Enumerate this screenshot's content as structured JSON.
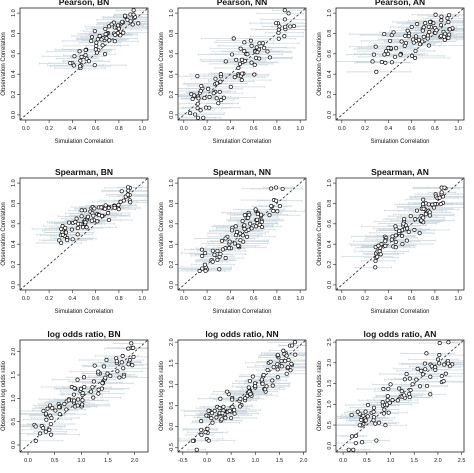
{
  "figure": {
    "panel_count": 9,
    "colors": {
      "points": "#111111",
      "errorbars": "#c9d6dd",
      "frame": "#222222",
      "identity_line": "#222222"
    }
  },
  "chart_data": [
    {
      "type": "scatter",
      "title": "Pearson, BN",
      "xlabel": "Simulation Correlation",
      "ylabel": "Observation Correlation",
      "xlim": [
        -0.05,
        1.05
      ],
      "ylim": [
        -0.05,
        1.05
      ],
      "xticks": [
        "0.0",
        "0.2",
        "0.4",
        "0.6",
        "0.8",
        "1.0"
      ],
      "yticks": [
        "0.0",
        "0.2",
        "0.4",
        "0.6",
        "0.8",
        "1.0"
      ],
      "identity_line": true,
      "error_bars": "horizontal",
      "gen": {
        "seed": 11,
        "n": 70,
        "xmin": 0.38,
        "xmax": 0.97,
        "slope": 0.85,
        "intercept": 0.17,
        "noise": 0.06,
        "ebar": 0.22
      }
    },
    {
      "type": "scatter",
      "title": "Pearson, NN",
      "xlabel": "Simulation Correlation",
      "ylabel": "Observation Correlation",
      "xlim": [
        -0.05,
        1.05
      ],
      "ylim": [
        -0.05,
        1.05
      ],
      "xticks": [
        "0.0",
        "0.2",
        "0.4",
        "0.6",
        "0.8",
        "1.0"
      ],
      "yticks": [
        "0.0",
        "0.2",
        "0.4",
        "0.6",
        "0.8",
        "1.0"
      ],
      "identity_line": true,
      "error_bars": "horizontal",
      "gen": {
        "seed": 23,
        "n": 90,
        "xmin": 0.05,
        "xmax": 0.95,
        "slope": 1.0,
        "intercept": 0.0,
        "noise": 0.11,
        "ebar": 0.24
      }
    },
    {
      "type": "scatter",
      "title": "Pearson, AN",
      "xlabel": "Simulation Correlation",
      "ylabel": "Observation Correlation",
      "xlim": [
        -0.05,
        1.05
      ],
      "ylim": [
        -0.05,
        1.05
      ],
      "xticks": [
        "0.0",
        "0.2",
        "0.4",
        "0.6",
        "0.8",
        "1.0"
      ],
      "yticks": [
        "0.0",
        "0.2",
        "0.4",
        "0.6",
        "0.8",
        "1.0"
      ],
      "identity_line": true,
      "error_bars": "horizontal",
      "gen": {
        "seed": 37,
        "n": 80,
        "xmin": 0.25,
        "xmax": 0.97,
        "slope": 0.45,
        "intercept": 0.48,
        "noise": 0.08,
        "ebar": 0.25
      }
    },
    {
      "type": "scatter",
      "title": "Spearman, BN",
      "xlabel": "Simulation Correlation",
      "ylabel": "Observation Correlation",
      "xlim": [
        -0.05,
        1.05
      ],
      "ylim": [
        -0.05,
        1.05
      ],
      "xticks": [
        "0.0",
        "0.2",
        "0.4",
        "0.6",
        "0.8",
        "1.0"
      ],
      "yticks": [
        "0.0",
        "0.2",
        "0.4",
        "0.6",
        "0.8",
        "1.0"
      ],
      "identity_line": true,
      "error_bars": "horizontal",
      "gen": {
        "seed": 41,
        "n": 85,
        "xmin": 0.28,
        "xmax": 0.9,
        "slope": 0.65,
        "intercept": 0.3,
        "noise": 0.05,
        "ebar": 0.2
      }
    },
    {
      "type": "scatter",
      "title": "Spearman, NN",
      "xlabel": "Simulation Correlation",
      "ylabel": "Observation Correlation",
      "xlim": [
        -0.05,
        1.05
      ],
      "ylim": [
        -0.05,
        1.05
      ],
      "xticks": [
        "0.0",
        "0.2",
        "0.4",
        "0.6",
        "0.8",
        "1.0"
      ],
      "yticks": [
        "0.0",
        "0.2",
        "0.4",
        "0.6",
        "0.8",
        "1.0"
      ],
      "identity_line": true,
      "error_bars": "horizontal",
      "gen": {
        "seed": 53,
        "n": 80,
        "xmin": 0.12,
        "xmax": 0.85,
        "slope": 0.95,
        "intercept": 0.05,
        "noise": 0.08,
        "ebar": 0.22
      }
    },
    {
      "type": "scatter",
      "title": "Spearman, AN",
      "xlabel": "Simulation Correlation",
      "ylabel": "Observation Correlation",
      "xlim": [
        -0.05,
        1.05
      ],
      "ylim": [
        -0.05,
        1.05
      ],
      "xticks": [
        "0.0",
        "0.2",
        "0.4",
        "0.6",
        "0.8",
        "1.0"
      ],
      "yticks": [
        "0.0",
        "0.2",
        "0.4",
        "0.6",
        "0.8",
        "1.0"
      ],
      "identity_line": true,
      "error_bars": "horizontal",
      "gen": {
        "seed": 67,
        "n": 80,
        "xmin": 0.28,
        "xmax": 0.9,
        "slope": 0.95,
        "intercept": 0.05,
        "noise": 0.07,
        "ebar": 0.24
      }
    },
    {
      "type": "scatter",
      "title": "log odds ratio, BN",
      "xlabel": "Simulation log odds ratio",
      "ylabel": "Observation log odds ratio",
      "xlim": [
        -0.15,
        2.25
      ],
      "ylim": [
        -0.15,
        2.25
      ],
      "xticks": [
        "0.0",
        "0.5",
        "1.0",
        "1.5",
        "2.0"
      ],
      "yticks": [
        "0.0",
        "0.5",
        "1.0",
        "1.5",
        "2.0"
      ],
      "identity_line": true,
      "error_bars": "horizontal",
      "gen": {
        "seed": 71,
        "n": 90,
        "xmin": 0.1,
        "xmax": 2.0,
        "slope": 0.85,
        "intercept": 0.25,
        "noise": 0.18,
        "ebar": 0.45
      }
    },
    {
      "type": "scatter",
      "title": "log odds ratio, NN",
      "xlabel": "Simulation log odds ratio",
      "ylabel": "Observation log odds ratio",
      "xlim": [
        -0.6,
        2.05
      ],
      "ylim": [
        -0.6,
        2.05
      ],
      "xticks": [
        "-0.5",
        "0.0",
        "0.5",
        "1.0",
        "1.5",
        "2.0"
      ],
      "yticks": [
        "-0.5",
        "0.0",
        "0.5",
        "1.0",
        "1.5",
        "2.0"
      ],
      "identity_line": true,
      "error_bars": "horizontal",
      "gen": {
        "seed": 83,
        "n": 110,
        "xmin": -0.3,
        "xmax": 1.85,
        "slope": 0.9,
        "intercept": 0.1,
        "noise": 0.2,
        "ebar": 0.45
      }
    },
    {
      "type": "scatter",
      "title": "log odds ratio, AN",
      "xlabel": "Simulation log odds ratio",
      "ylabel": "Observation log odds ratio",
      "xlim": [
        -0.15,
        2.55
      ],
      "ylim": [
        -0.15,
        2.55
      ],
      "xticks": [
        "0.0",
        "0.5",
        "1.0",
        "1.5",
        "2.0",
        "2.5"
      ],
      "yticks": [
        "0.0",
        "0.5",
        "1.0",
        "1.5",
        "2.0",
        "2.5"
      ],
      "identity_line": true,
      "error_bars": "horizontal",
      "gen": {
        "seed": 97,
        "n": 90,
        "xmin": 0.1,
        "xmax": 2.3,
        "slope": 0.9,
        "intercept": 0.1,
        "noise": 0.25,
        "ebar": 0.5
      }
    }
  ]
}
